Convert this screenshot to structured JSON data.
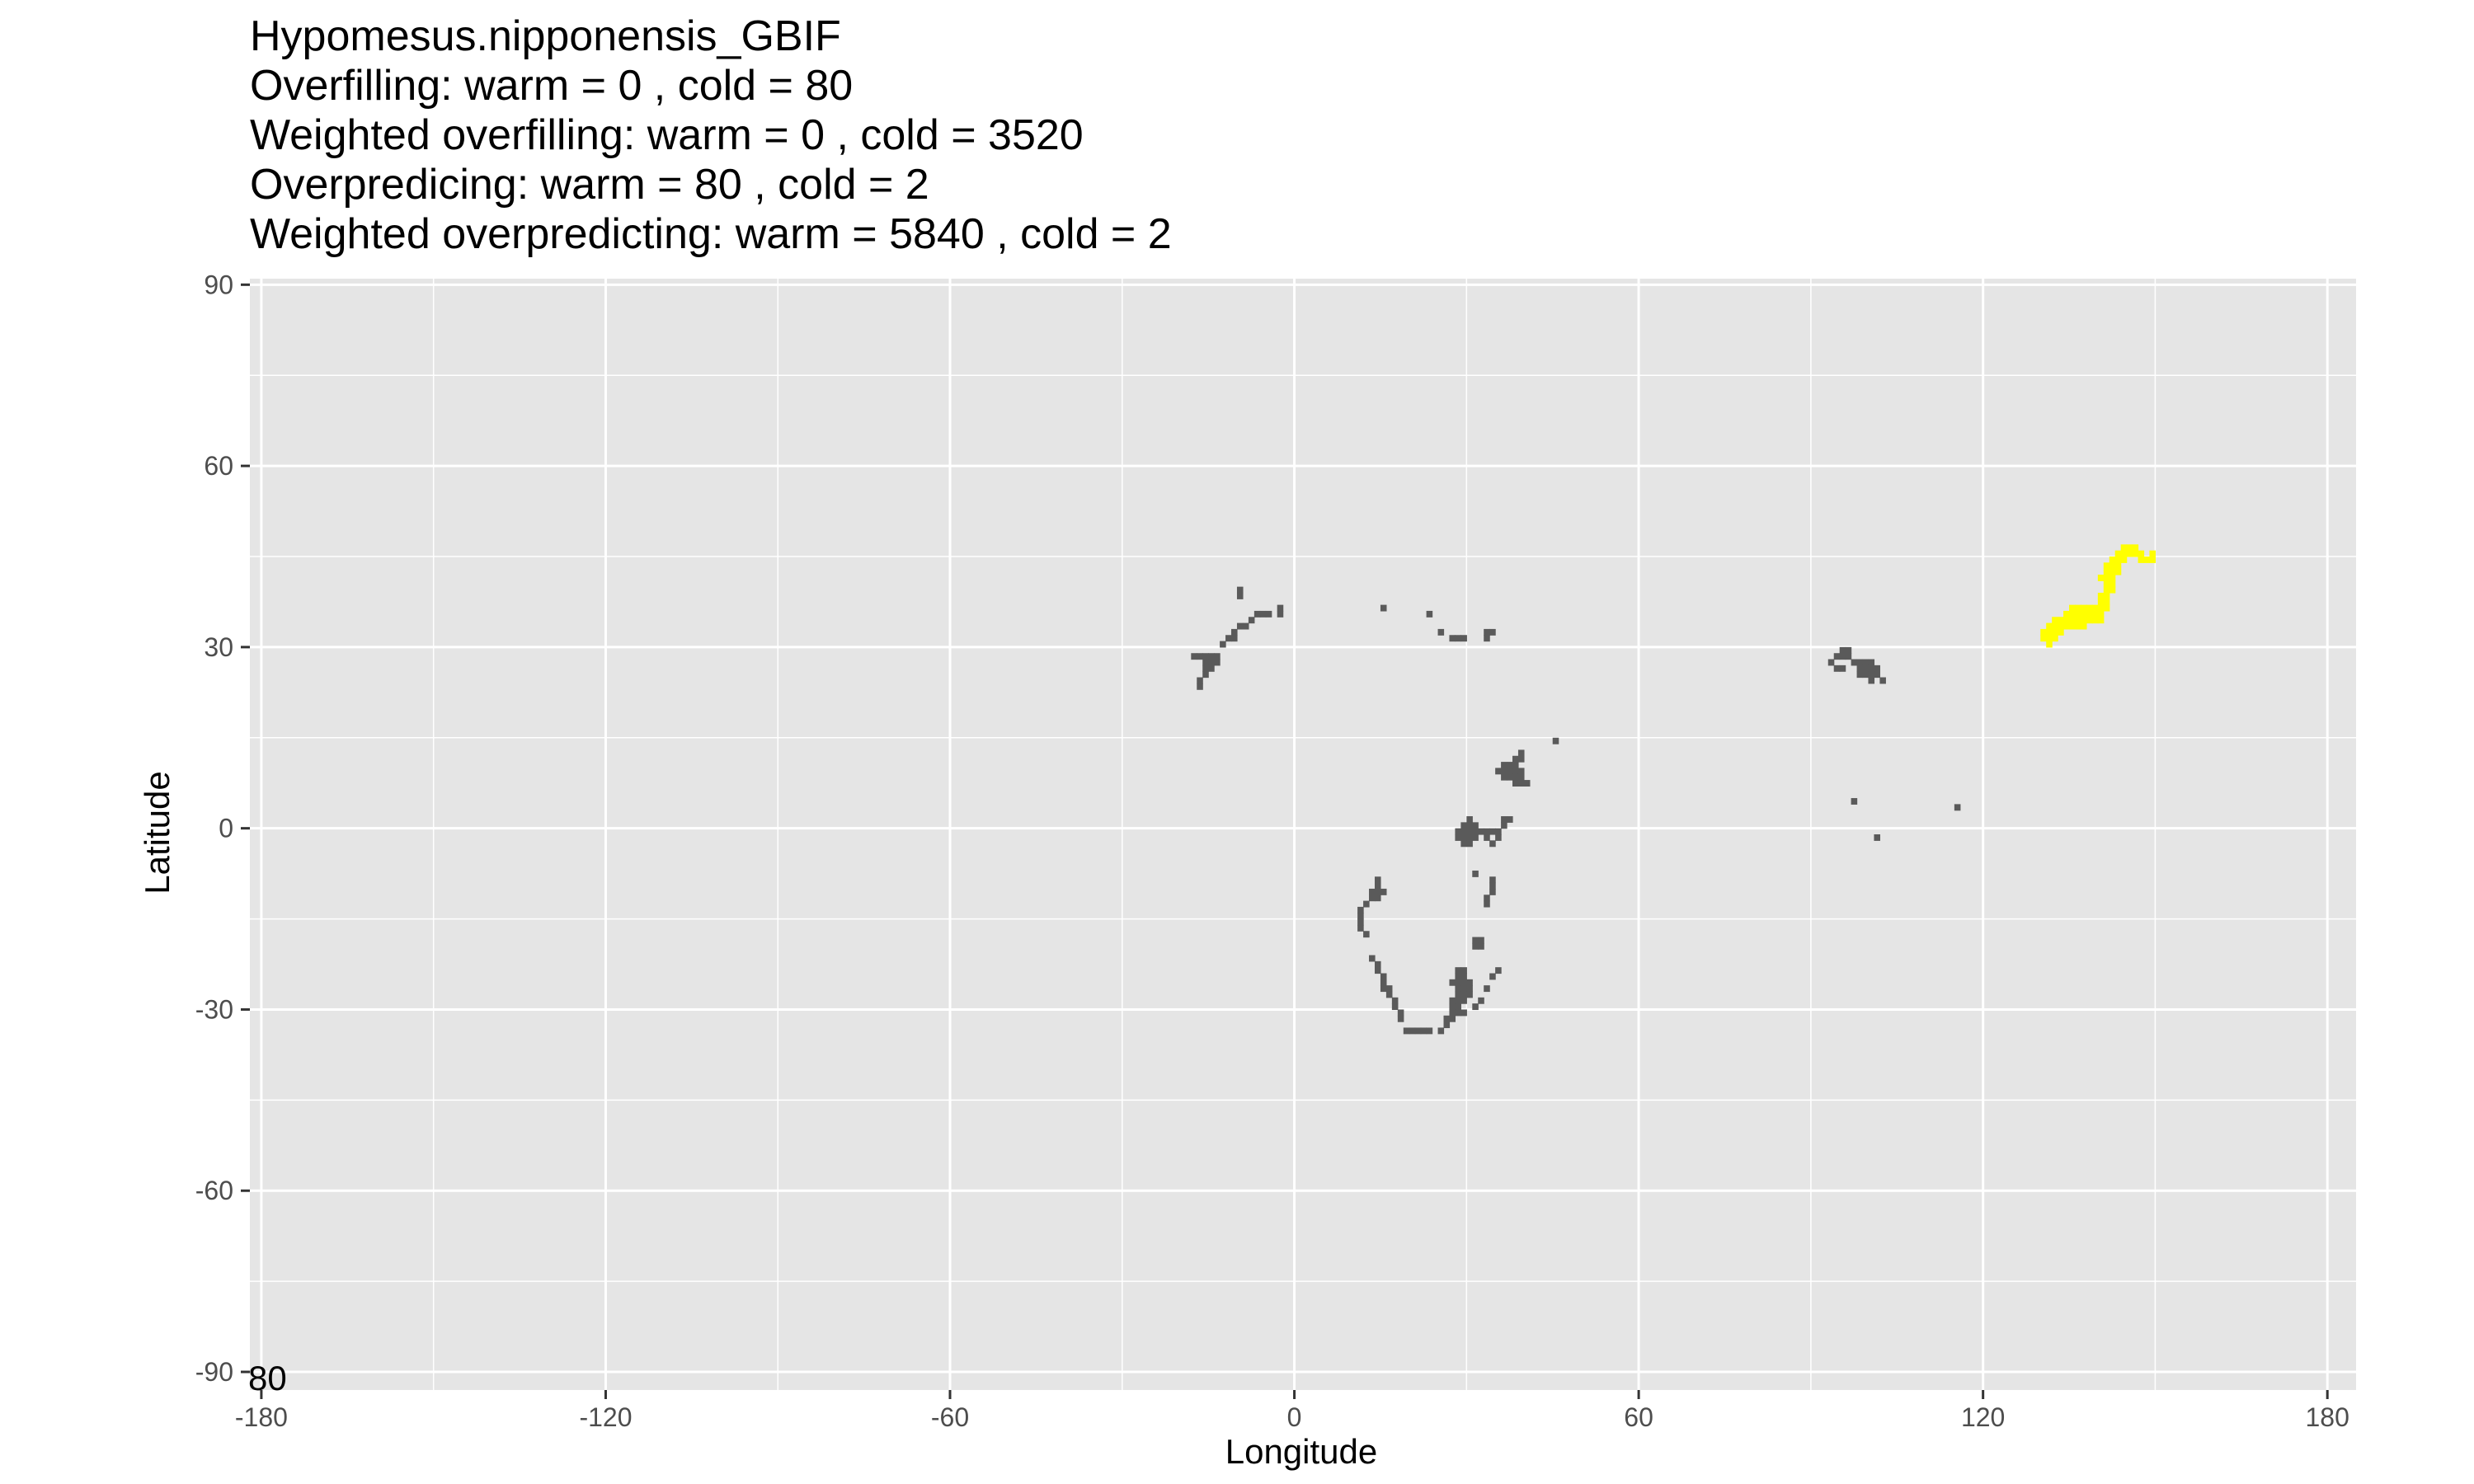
{
  "chart_data": {
    "type": "heatmap",
    "title_lines": [
      "Hypomesus.nipponensis_GBIF",
      "Overfilling: warm =  0  , cold =  80",
      "Weighted overfilling: warm =  0 , cold =  3520",
      "Overpredicing: warm =  80  , cold =  2",
      "Weighted overpredicting: warm =  5840 , cold =  2"
    ],
    "xlabel": "Longitude",
    "ylabel": "Latitude",
    "xlim": [
      -182,
      185
    ],
    "ylim": [
      -93,
      91
    ],
    "x_ticks": [
      -180,
      -120,
      -60,
      0,
      60,
      120,
      180
    ],
    "y_ticks": [
      90,
      60,
      30,
      0,
      -30,
      -60,
      -90
    ],
    "corner_label": "80",
    "grid": true,
    "panel_color": "#e5e5e5",
    "grid_color": "#ffffff",
    "cell_size_deg": 1,
    "series": [
      {
        "name": "predicted",
        "color": "#5a5a5a",
        "cells": [
          [
            -10,
            39
          ],
          [
            -10,
            38
          ],
          [
            -10,
            33
          ],
          [
            -11,
            32
          ],
          [
            -11,
            31
          ],
          [
            -12,
            31
          ],
          [
            -13,
            30
          ],
          [
            -7,
            35
          ],
          [
            -6,
            35
          ],
          [
            -5,
            35
          ],
          [
            -3,
            36
          ],
          [
            -3,
            35
          ],
          [
            -8,
            34
          ],
          [
            -9,
            33
          ],
          [
            -18,
            28
          ],
          [
            -17,
            28
          ],
          [
            -16,
            28
          ],
          [
            -15,
            28
          ],
          [
            -15,
            27
          ],
          [
            -14,
            28
          ],
          [
            -14,
            27
          ],
          [
            -16,
            27
          ],
          [
            -15,
            26
          ],
          [
            -16,
            26
          ],
          [
            -16,
            25
          ],
          [
            -17,
            24
          ],
          [
            -17,
            23
          ],
          [
            15,
            36
          ],
          [
            23,
            35
          ],
          [
            25,
            32
          ],
          [
            27,
            31
          ],
          [
            28,
            31
          ],
          [
            29,
            31
          ],
          [
            33,
            31
          ],
          [
            33,
            32
          ],
          [
            34,
            32
          ],
          [
            45,
            14
          ],
          [
            35,
            9
          ],
          [
            36,
            9
          ],
          [
            37,
            9
          ],
          [
            38,
            9
          ],
          [
            39,
            9
          ],
          [
            36,
            10
          ],
          [
            37,
            10
          ],
          [
            38,
            10
          ],
          [
            38,
            11
          ],
          [
            39,
            11
          ],
          [
            39,
            12
          ],
          [
            36,
            8
          ],
          [
            37,
            8
          ],
          [
            38,
            8
          ],
          [
            39,
            8
          ],
          [
            38,
            7
          ],
          [
            39,
            7
          ],
          [
            40,
            7
          ],
          [
            28,
            -1
          ],
          [
            29,
            -1
          ],
          [
            30,
            -1
          ],
          [
            31,
            -1
          ],
          [
            32,
            -1
          ],
          [
            28,
            -2
          ],
          [
            29,
            -2
          ],
          [
            30,
            -2
          ],
          [
            31,
            -2
          ],
          [
            29,
            -3
          ],
          [
            30,
            -3
          ],
          [
            31,
            0
          ],
          [
            30,
            0
          ],
          [
            29,
            0
          ],
          [
            33,
            -1
          ],
          [
            33,
            -2
          ],
          [
            34,
            -1
          ],
          [
            35,
            -1
          ],
          [
            35,
            -2
          ],
          [
            34,
            -3
          ],
          [
            36,
            0
          ],
          [
            36,
            1
          ],
          [
            37,
            1
          ],
          [
            30,
            1
          ],
          [
            31,
            -8
          ],
          [
            34,
            -9
          ],
          [
            34,
            -10
          ],
          [
            34,
            -11
          ],
          [
            33,
            -12
          ],
          [
            33,
            -13
          ],
          [
            14,
            -9
          ],
          [
            14,
            -10
          ],
          [
            14,
            -11
          ],
          [
            13,
            -11
          ],
          [
            15,
            -11
          ],
          [
            13,
            -12
          ],
          [
            14,
            -12
          ],
          [
            12,
            -13
          ],
          [
            11,
            -14
          ],
          [
            11,
            -15
          ],
          [
            11,
            -16
          ],
          [
            11,
            -17
          ],
          [
            12,
            -18
          ],
          [
            31,
            -19
          ],
          [
            32,
            -19
          ],
          [
            31,
            -20
          ],
          [
            32,
            -20
          ],
          [
            13,
            -22
          ],
          [
            14,
            -23
          ],
          [
            14,
            -24
          ],
          [
            15,
            -25
          ],
          [
            15,
            -26
          ],
          [
            15,
            -27
          ],
          [
            16,
            -27
          ],
          [
            16,
            -28
          ],
          [
            17,
            -29
          ],
          [
            17,
            -30
          ],
          [
            18,
            -31
          ],
          [
            18,
            -32
          ],
          [
            28,
            -24
          ],
          [
            29,
            -24
          ],
          [
            28,
            -25
          ],
          [
            29,
            -25
          ],
          [
            27,
            -26
          ],
          [
            28,
            -26
          ],
          [
            29,
            -26
          ],
          [
            30,
            -26
          ],
          [
            28,
            -27
          ],
          [
            29,
            -27
          ],
          [
            30,
            -27
          ],
          [
            28,
            -28
          ],
          [
            29,
            -28
          ],
          [
            30,
            -28
          ],
          [
            27,
            -29
          ],
          [
            28,
            -29
          ],
          [
            29,
            -29
          ],
          [
            27,
            -30
          ],
          [
            28,
            -30
          ],
          [
            27,
            -31
          ],
          [
            28,
            -31
          ],
          [
            29,
            -31
          ],
          [
            32,
            -29
          ],
          [
            31,
            -30
          ],
          [
            33,
            -27
          ],
          [
            35,
            -24
          ],
          [
            34,
            -25
          ],
          [
            26,
            -32
          ],
          [
            27,
            -32
          ],
          [
            19,
            -34
          ],
          [
            20,
            -34
          ],
          [
            21,
            -34
          ],
          [
            22,
            -34
          ],
          [
            23,
            -34
          ],
          [
            25,
            -34
          ],
          [
            26,
            -33
          ],
          [
            94,
            28
          ],
          [
            95,
            28
          ],
          [
            96,
            28
          ],
          [
            96,
            29
          ],
          [
            95,
            29
          ],
          [
            93,
            27
          ],
          [
            94,
            26
          ],
          [
            95,
            26
          ],
          [
            97,
            27
          ],
          [
            98,
            27
          ],
          [
            98,
            26
          ],
          [
            99,
            26
          ],
          [
            99,
            27
          ],
          [
            100,
            27
          ],
          [
            100,
            26
          ],
          [
            101,
            26
          ],
          [
            99,
            25
          ],
          [
            100,
            25
          ],
          [
            101,
            25
          ],
          [
            98,
            25
          ],
          [
            102,
            24
          ],
          [
            100,
            24
          ],
          [
            97,
            4
          ],
          [
            101,
            -2
          ],
          [
            115,
            3
          ]
        ]
      },
      {
        "name": "observed",
        "color": "#ffff00",
        "cells": [
          [
            146,
            46
          ],
          [
            145,
            46
          ],
          [
            144,
            46
          ],
          [
            143,
            45
          ],
          [
            144,
            45
          ],
          [
            145,
            45
          ],
          [
            146,
            45
          ],
          [
            147,
            45
          ],
          [
            147,
            44
          ],
          [
            148,
            44
          ],
          [
            149,
            44
          ],
          [
            149,
            45
          ],
          [
            142,
            44
          ],
          [
            143,
            44
          ],
          [
            144,
            44
          ],
          [
            141,
            43
          ],
          [
            142,
            43
          ],
          [
            143,
            43
          ],
          [
            141,
            42
          ],
          [
            142,
            42
          ],
          [
            143,
            42
          ],
          [
            140,
            41
          ],
          [
            141,
            41
          ],
          [
            142,
            41
          ],
          [
            141,
            40
          ],
          [
            142,
            40
          ],
          [
            141,
            39
          ],
          [
            142,
            39
          ],
          [
            140,
            38
          ],
          [
            141,
            38
          ],
          [
            140,
            37
          ],
          [
            141,
            37
          ],
          [
            139,
            36
          ],
          [
            140,
            36
          ],
          [
            141,
            36
          ],
          [
            135,
            36
          ],
          [
            136,
            36
          ],
          [
            137,
            36
          ],
          [
            138,
            36
          ],
          [
            139,
            35
          ],
          [
            140,
            35
          ],
          [
            136,
            35
          ],
          [
            137,
            35
          ],
          [
            138,
            35
          ],
          [
            134,
            35
          ],
          [
            135,
            35
          ],
          [
            132,
            34
          ],
          [
            133,
            34
          ],
          [
            134,
            34
          ],
          [
            135,
            34
          ],
          [
            136,
            34
          ],
          [
            137,
            34
          ],
          [
            138,
            34
          ],
          [
            139,
            34
          ],
          [
            140,
            34
          ],
          [
            131,
            33
          ],
          [
            132,
            33
          ],
          [
            133,
            33
          ],
          [
            134,
            33
          ],
          [
            135,
            33
          ],
          [
            136,
            33
          ],
          [
            137,
            33
          ],
          [
            130,
            32
          ],
          [
            131,
            32
          ],
          [
            132,
            32
          ],
          [
            133,
            32
          ],
          [
            130,
            31
          ],
          [
            131,
            31
          ],
          [
            132,
            31
          ],
          [
            131,
            30
          ]
        ]
      }
    ]
  }
}
